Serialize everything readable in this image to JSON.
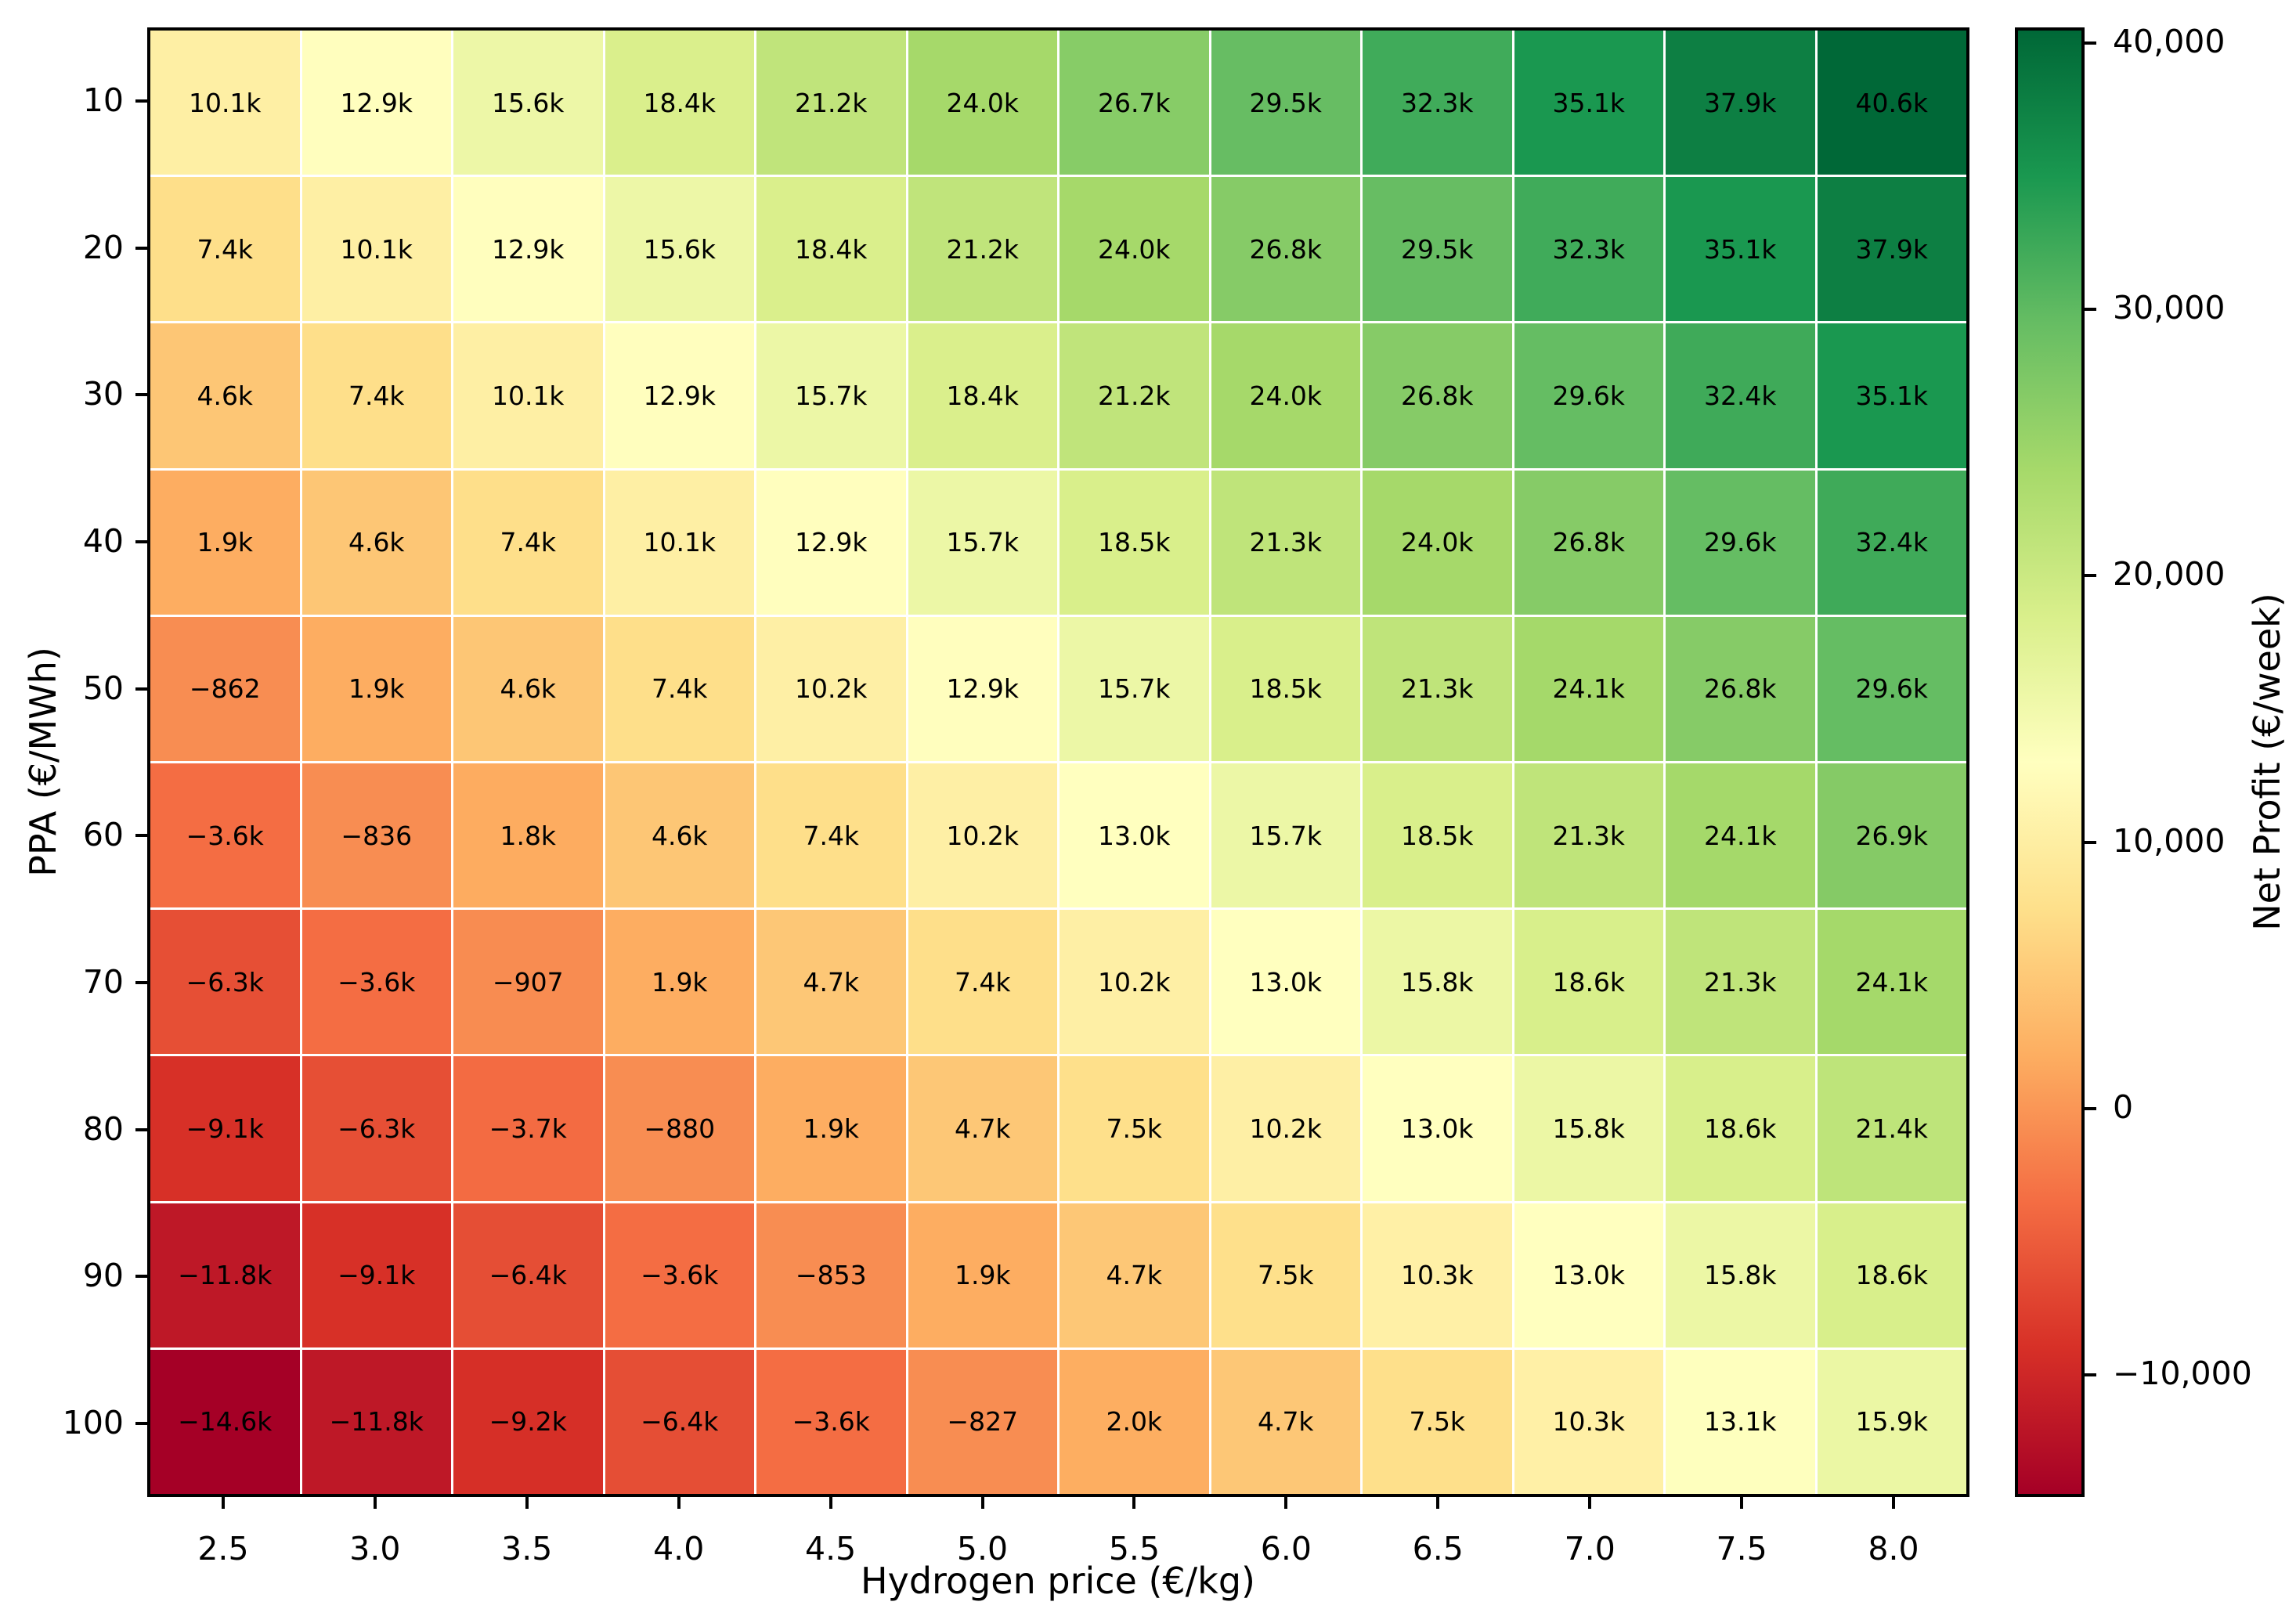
{
  "chart_data": {
    "type": "heatmap",
    "title": "",
    "xlabel": "Hydrogen price (€/kg)",
    "ylabel": "PPA (€/MWh)",
    "x_categories": [
      "2.5",
      "3.0",
      "3.5",
      "4.0",
      "4.5",
      "5.0",
      "5.5",
      "6.0",
      "6.5",
      "7.0",
      "7.5",
      "8.0"
    ],
    "y_categories": [
      "10",
      "20",
      "30",
      "40",
      "50",
      "60",
      "70",
      "80",
      "90",
      "100"
    ],
    "values": [
      [
        10100,
        12900,
        15600,
        18400,
        21200,
        24000,
        26700,
        29500,
        32300,
        35100,
        37900,
        40600
      ],
      [
        7400,
        10100,
        12900,
        15600,
        18400,
        21200,
        24000,
        26800,
        29500,
        32300,
        35100,
        37900
      ],
      [
        4600,
        7400,
        10100,
        12900,
        15700,
        18400,
        21200,
        24000,
        26800,
        29600,
        32400,
        35100
      ],
      [
        1900,
        4600,
        7400,
        10100,
        12900,
        15700,
        18500,
        21300,
        24000,
        26800,
        29600,
        32400
      ],
      [
        -862,
        1900,
        4600,
        7400,
        10200,
        12900,
        15700,
        18500,
        21300,
        24100,
        26800,
        29600
      ],
      [
        -3600,
        -836,
        1800,
        4600,
        7400,
        10200,
        13000,
        15700,
        18500,
        21300,
        24100,
        26900
      ],
      [
        -6300,
        -3600,
        -907,
        1900,
        4700,
        7400,
        10200,
        13000,
        15800,
        18600,
        21300,
        24100
      ],
      [
        -9100,
        -6300,
        -3700,
        -880,
        1900,
        4700,
        7500,
        10200,
        13000,
        15800,
        18600,
        21400
      ],
      [
        -11800,
        -9100,
        -6400,
        -3600,
        -853,
        1900,
        4700,
        7500,
        10300,
        13000,
        15800,
        18600
      ],
      [
        -14600,
        -11800,
        -9200,
        -6400,
        -3600,
        -827,
        2000,
        4700,
        7500,
        10300,
        13100,
        15900
      ]
    ],
    "cell_labels": [
      [
        "10.1k",
        "12.9k",
        "15.6k",
        "18.4k",
        "21.2k",
        "24.0k",
        "26.7k",
        "29.5k",
        "32.3k",
        "35.1k",
        "37.9k",
        "40.6k"
      ],
      [
        "7.4k",
        "10.1k",
        "12.9k",
        "15.6k",
        "18.4k",
        "21.2k",
        "24.0k",
        "26.8k",
        "29.5k",
        "32.3k",
        "35.1k",
        "37.9k"
      ],
      [
        "4.6k",
        "7.4k",
        "10.1k",
        "12.9k",
        "15.7k",
        "18.4k",
        "21.2k",
        "24.0k",
        "26.8k",
        "29.6k",
        "32.4k",
        "35.1k"
      ],
      [
        "1.9k",
        "4.6k",
        "7.4k",
        "10.1k",
        "12.9k",
        "15.7k",
        "18.5k",
        "21.3k",
        "24.0k",
        "26.8k",
        "29.6k",
        "32.4k"
      ],
      [
        "−862",
        "1.9k",
        "4.6k",
        "7.4k",
        "10.2k",
        "12.9k",
        "15.7k",
        "18.5k",
        "21.3k",
        "24.1k",
        "26.8k",
        "29.6k"
      ],
      [
        "−3.6k",
        "−836",
        "1.8k",
        "4.6k",
        "7.4k",
        "10.2k",
        "13.0k",
        "15.7k",
        "18.5k",
        "21.3k",
        "24.1k",
        "26.9k"
      ],
      [
        "−6.3k",
        "−3.6k",
        "−907",
        "1.9k",
        "4.7k",
        "7.4k",
        "10.2k",
        "13.0k",
        "15.8k",
        "18.6k",
        "21.3k",
        "24.1k"
      ],
      [
        "−9.1k",
        "−6.3k",
        "−3.7k",
        "−880",
        "1.9k",
        "4.7k",
        "7.5k",
        "10.2k",
        "13.0k",
        "15.8k",
        "18.6k",
        "21.4k"
      ],
      [
        "−11.8k",
        "−9.1k",
        "−6.4k",
        "−3.6k",
        "−853",
        "1.9k",
        "4.7k",
        "7.5k",
        "10.3k",
        "13.0k",
        "15.8k",
        "18.6k"
      ],
      [
        "−14.6k",
        "−11.8k",
        "−9.2k",
        "−6.4k",
        "−3.6k",
        "−827",
        "2.0k",
        "4.7k",
        "7.5k",
        "10.3k",
        "13.1k",
        "15.9k"
      ]
    ],
    "colorbar": {
      "label": "Net Profit (€/week)",
      "vmin": -14600,
      "vmax": 40600,
      "ticks": [
        {
          "value": 40000,
          "label": "40,000"
        },
        {
          "value": 30000,
          "label": "30,000"
        },
        {
          "value": 20000,
          "label": "20,000"
        },
        {
          "value": 10000,
          "label": "10,000"
        },
        {
          "value": 0,
          "label": "0"
        },
        {
          "value": -10000,
          "label": "−10,000"
        }
      ],
      "colormap_name": "RdYlGn",
      "colormap_stops": [
        "#a50026",
        "#d73027",
        "#f46d43",
        "#fdae61",
        "#fee08b",
        "#ffffbf",
        "#d9ef8b",
        "#a6d96a",
        "#66bd63",
        "#1a9850",
        "#006837"
      ]
    },
    "grid_line_color": "#ffffff",
    "spine_color": "#000000",
    "text_color": "#000000",
    "background_color": "#ffffff",
    "legend_position": "right",
    "grid": "white cell separators"
  }
}
